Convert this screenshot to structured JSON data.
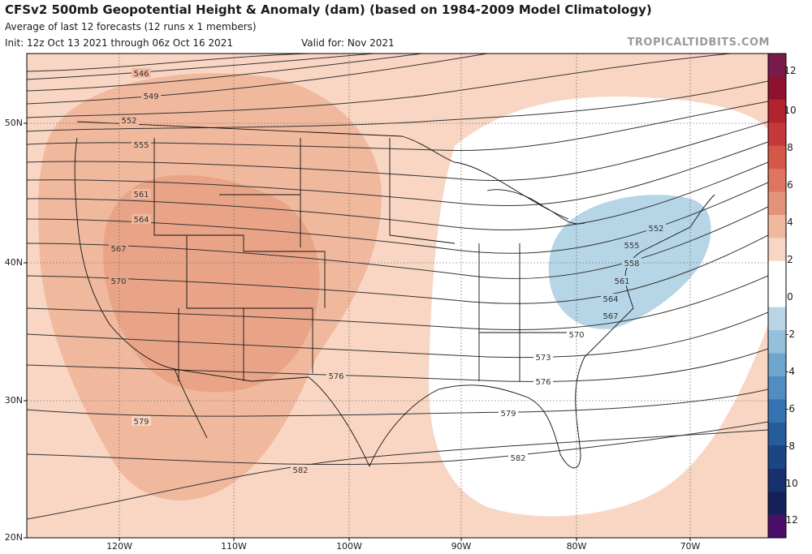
{
  "header": {
    "title": "CFSv2 500mb Geopotential Height & Anomaly (dam) (based on 1984-2009 Model Climatology)",
    "subtitle": "Average of last 12 forecasts (12 runs x 1 members)",
    "init": "Init: 12z Oct 13 2021 through 06z Oct 16 2021",
    "valid": "Valid for: Nov 2021",
    "credit": "TROPICALTIDBITS.COM"
  },
  "map": {
    "lon_range": [
      -128,
      -63
    ],
    "lat_range": [
      20,
      55
    ],
    "lat_labels": [
      "50N",
      "40N",
      "30N",
      "20N"
    ],
    "lon_labels": [
      "120W",
      "110W",
      "100W",
      "90W",
      "80W",
      "70W"
    ],
    "contour_labels": [
      "546",
      "549",
      "552",
      "555",
      "561",
      "564",
      "567",
      "570",
      "576",
      "579",
      "582",
      "552",
      "555",
      "558",
      "561",
      "564",
      "567",
      "570",
      "573",
      "576",
      "579",
      "582"
    ]
  },
  "colorbar": {
    "labels": [
      "12",
      "10",
      "8",
      "6",
      "4",
      "2",
      "0",
      "-2",
      "-4",
      "-6",
      "-8",
      "-10",
      "-12"
    ],
    "colors": [
      "#7a1a4a",
      "#8e1230",
      "#b0232f",
      "#c6393a",
      "#d4574a",
      "#dd7560",
      "#e59378",
      "#f0b99e",
      "#f9d6c3",
      "#ffffff",
      "#ffffff",
      "#b8d5e6",
      "#94c0dc",
      "#6ea6cf",
      "#4f8dc2",
      "#3474b2",
      "#255c9c",
      "#1b4585",
      "#173170",
      "#15205a",
      "#4b0f6a"
    ]
  },
  "anomaly_colors": {
    "positive_light": "#f9d6c3",
    "positive_medium": "#f0b99e",
    "negative_light": "#b6d5e6",
    "neutral": "#ffffff"
  }
}
